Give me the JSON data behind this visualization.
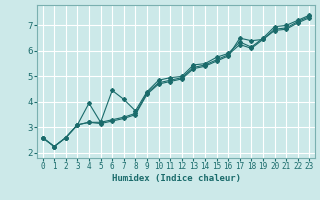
{
  "title": "",
  "xlabel": "Humidex (Indice chaleur)",
  "bg_color": "#cce9e9",
  "grid_color": "#ffffff",
  "line_color": "#1a6b6b",
  "xlim": [
    -0.5,
    23.5
  ],
  "ylim": [
    1.8,
    7.8
  ],
  "xticks": [
    0,
    1,
    2,
    3,
    4,
    5,
    6,
    7,
    8,
    9,
    10,
    11,
    12,
    13,
    14,
    15,
    16,
    17,
    18,
    19,
    20,
    21,
    22,
    23
  ],
  "yticks": [
    2,
    3,
    4,
    5,
    6,
    7
  ],
  "series": [
    [
      [
        0,
        2.6
      ],
      [
        1,
        2.25
      ],
      [
        2,
        2.6
      ],
      [
        3,
        3.1
      ],
      [
        4,
        3.95
      ],
      [
        5,
        3.2
      ],
      [
        6,
        4.45
      ],
      [
        7,
        4.1
      ],
      [
        8,
        3.65
      ],
      [
        9,
        4.4
      ],
      [
        10,
        4.85
      ],
      [
        11,
        4.95
      ],
      [
        12,
        5.0
      ],
      [
        13,
        5.45
      ],
      [
        14,
        5.5
      ],
      [
        15,
        5.75
      ],
      [
        16,
        5.9
      ],
      [
        17,
        6.35
      ],
      [
        18,
        6.15
      ],
      [
        19,
        6.5
      ],
      [
        20,
        6.95
      ],
      [
        21,
        7.0
      ],
      [
        22,
        7.2
      ],
      [
        23,
        7.4
      ]
    ],
    [
      [
        0,
        2.6
      ],
      [
        1,
        2.25
      ],
      [
        2,
        2.6
      ],
      [
        3,
        3.1
      ],
      [
        4,
        3.2
      ],
      [
        5,
        3.2
      ],
      [
        6,
        3.3
      ],
      [
        7,
        3.4
      ],
      [
        8,
        3.55
      ],
      [
        9,
        4.35
      ],
      [
        10,
        4.75
      ],
      [
        11,
        4.85
      ],
      [
        12,
        4.95
      ],
      [
        13,
        5.35
      ],
      [
        14,
        5.45
      ],
      [
        15,
        5.65
      ],
      [
        16,
        5.85
      ],
      [
        17,
        6.25
      ],
      [
        18,
        6.1
      ],
      [
        19,
        6.45
      ],
      [
        20,
        6.85
      ],
      [
        21,
        6.9
      ],
      [
        22,
        7.15
      ],
      [
        23,
        7.35
      ]
    ],
    [
      [
        0,
        2.6
      ],
      [
        1,
        2.25
      ],
      [
        2,
        2.6
      ],
      [
        3,
        3.1
      ],
      [
        4,
        3.2
      ],
      [
        5,
        3.15
      ],
      [
        6,
        3.25
      ],
      [
        7,
        3.35
      ],
      [
        8,
        3.5
      ],
      [
        9,
        4.3
      ],
      [
        10,
        4.7
      ],
      [
        11,
        4.8
      ],
      [
        12,
        4.9
      ],
      [
        13,
        5.3
      ],
      [
        14,
        5.4
      ],
      [
        15,
        5.6
      ],
      [
        16,
        5.8
      ],
      [
        17,
        6.5
      ],
      [
        18,
        6.4
      ],
      [
        19,
        6.45
      ],
      [
        20,
        6.8
      ],
      [
        21,
        6.85
      ],
      [
        22,
        7.1
      ],
      [
        23,
        7.3
      ]
    ]
  ]
}
